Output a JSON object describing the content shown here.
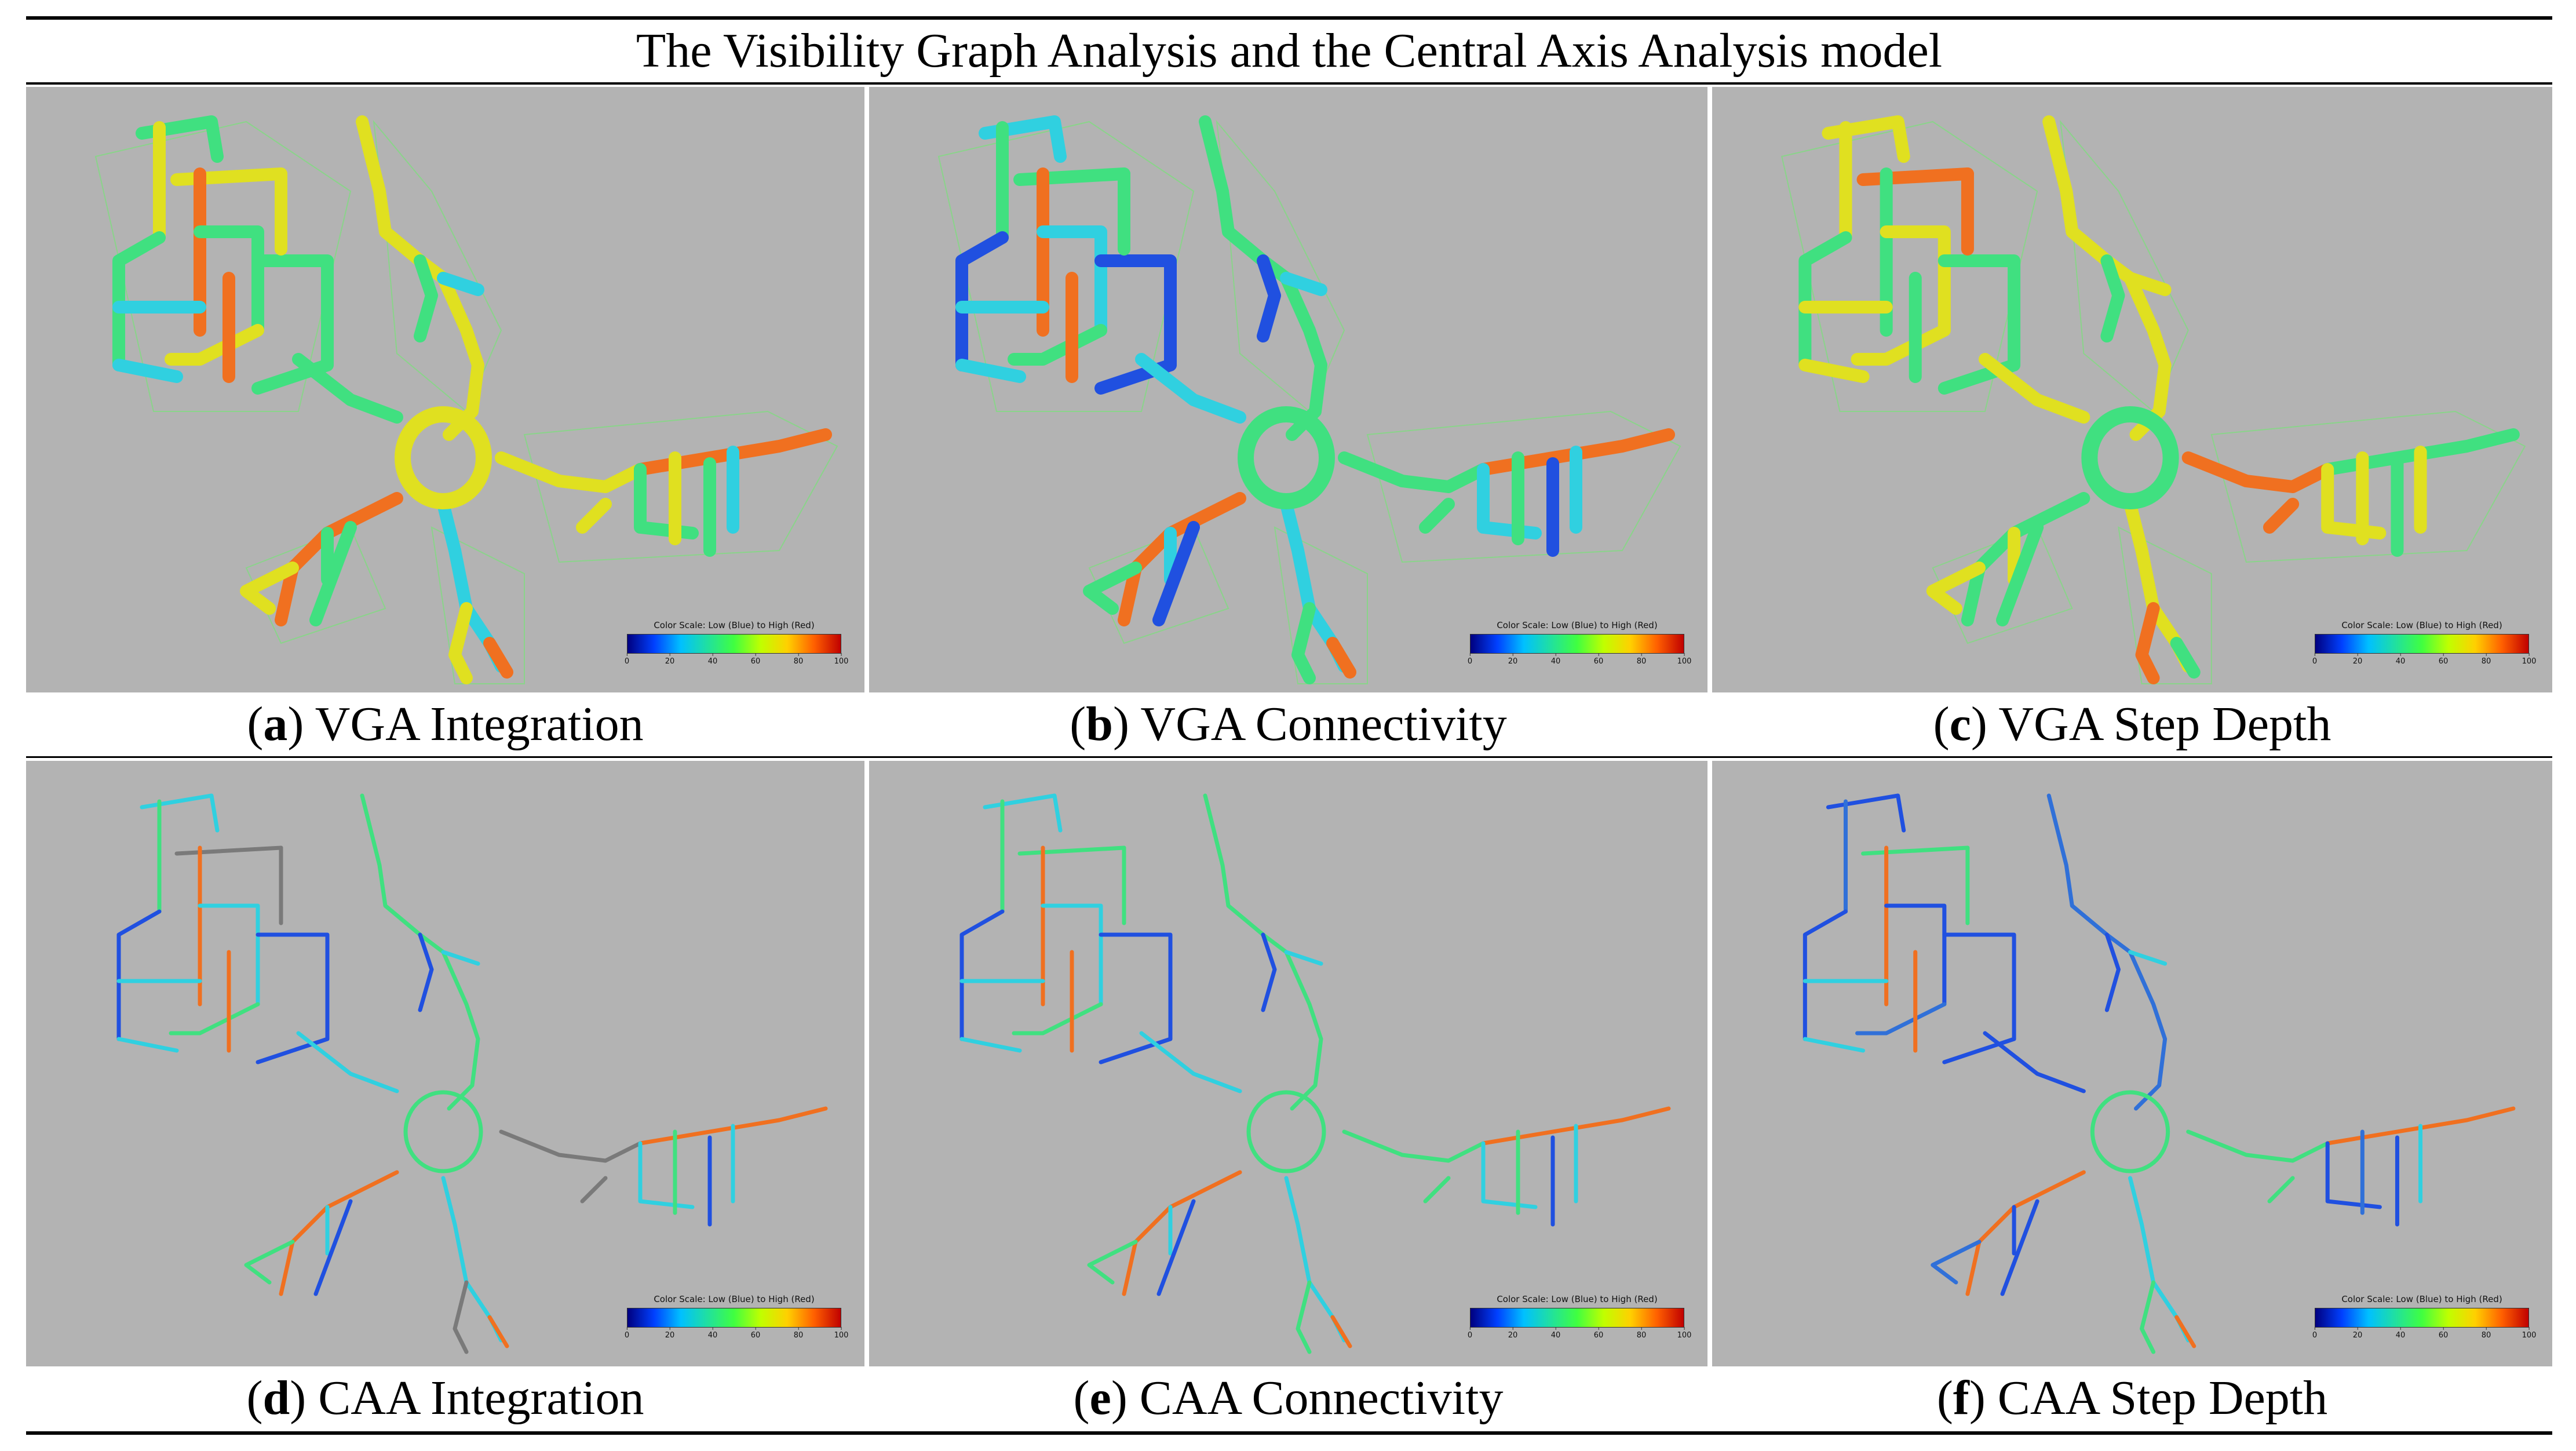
{
  "title": "The Visibility Graph Analysis and the Central Axis Analysis model",
  "legend": {
    "title": "Color Scale: Low (Blue) to High (Red)",
    "ticks": [
      "0",
      "20",
      "40",
      "60",
      "80",
      "100"
    ]
  },
  "panels": [
    {
      "letter": "a",
      "caption": ") VGA Integration"
    },
    {
      "letter": "b",
      "caption": ") VGA Connectivity"
    },
    {
      "letter": "c",
      "caption": ") VGA Step Depth"
    },
    {
      "letter": "d",
      "caption": ") CAA Integration"
    },
    {
      "letter": "e",
      "caption": ") CAA Connectivity"
    },
    {
      "letter": "f",
      "caption": ") CAA Step Depth"
    }
  ],
  "colors": {
    "background": "#b3b3b3",
    "outline": "#7fdc7f",
    "blue": "#2050e0",
    "cyan": "#30d0e0",
    "green": "#40e080",
    "yellow": "#e0e020",
    "orange": "#f07020",
    "red": "#e02020",
    "gray": "#7a7a7a"
  }
}
